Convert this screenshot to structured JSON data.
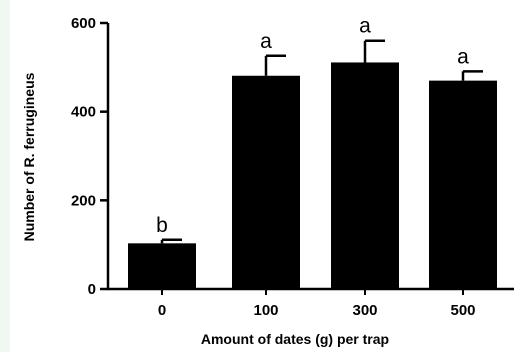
{
  "chart_data": {
    "type": "bar",
    "categories": [
      "0",
      "100",
      "300",
      "500"
    ],
    "values": [
      103,
      481,
      511,
      470
    ],
    "errors": [
      8,
      45,
      49,
      21
    ],
    "significance": [
      "b",
      "a",
      "a",
      "a"
    ],
    "xlabel": "Amount of dates (g) per trap",
    "ylabel": "Number of R. ferrugineus",
    "ylim": [
      0,
      600
    ],
    "yticks": [
      0,
      200,
      400,
      600
    ],
    "grid": false,
    "bar_color": "#000000"
  }
}
